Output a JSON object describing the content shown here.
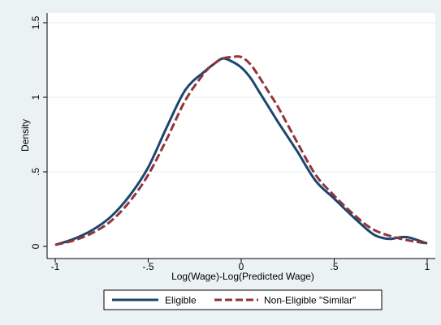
{
  "chart_data": {
    "type": "line",
    "title": "",
    "xlabel": "Log(Wage)-Log(Predicted Wage)",
    "ylabel": "Density",
    "xlim": [
      -1,
      1
    ],
    "ylim": [
      0,
      1.5
    ],
    "x_ticks": [
      -1,
      -0.5,
      0,
      0.5,
      1
    ],
    "x_tick_labels": [
      "-1",
      "-.5",
      "0",
      ".5",
      "1"
    ],
    "y_ticks": [
      0,
      0.5,
      1,
      1.5
    ],
    "y_tick_labels": [
      "0",
      ".5",
      "1",
      "1.5"
    ],
    "grid": "horizontal",
    "legend_position": "bottom",
    "series": [
      {
        "name": "Eligible",
        "color": "#1a476f",
        "style": "solid",
        "x": [
          -1.0,
          -0.9,
          -0.8,
          -0.7,
          -0.6,
          -0.5,
          -0.4,
          -0.3,
          -0.2,
          -0.15,
          -0.1,
          -0.05,
          0.0,
          0.05,
          0.1,
          0.15,
          0.2,
          0.3,
          0.4,
          0.5,
          0.6,
          0.7,
          0.75,
          0.8,
          0.85,
          0.9,
          1.0
        ],
        "values": [
          0.01,
          0.05,
          0.11,
          0.2,
          0.34,
          0.53,
          0.8,
          1.05,
          1.17,
          1.22,
          1.26,
          1.24,
          1.2,
          1.13,
          1.03,
          0.93,
          0.83,
          0.64,
          0.44,
          0.32,
          0.2,
          0.09,
          0.06,
          0.05,
          0.06,
          0.06,
          0.02
        ]
      },
      {
        "name": "Non-Eligible \"Similar\"",
        "color": "#90353b",
        "style": "dashed",
        "x": [
          -1.0,
          -0.9,
          -0.8,
          -0.7,
          -0.6,
          -0.5,
          -0.4,
          -0.3,
          -0.2,
          -0.15,
          -0.1,
          -0.05,
          0.0,
          0.05,
          0.1,
          0.15,
          0.2,
          0.3,
          0.4,
          0.5,
          0.6,
          0.7,
          0.8,
          0.9,
          1.0
        ],
        "values": [
          0.01,
          0.04,
          0.09,
          0.17,
          0.3,
          0.48,
          0.72,
          0.98,
          1.16,
          1.22,
          1.26,
          1.27,
          1.27,
          1.22,
          1.13,
          1.03,
          0.93,
          0.7,
          0.48,
          0.34,
          0.22,
          0.12,
          0.07,
          0.04,
          0.02
        ]
      }
    ]
  }
}
